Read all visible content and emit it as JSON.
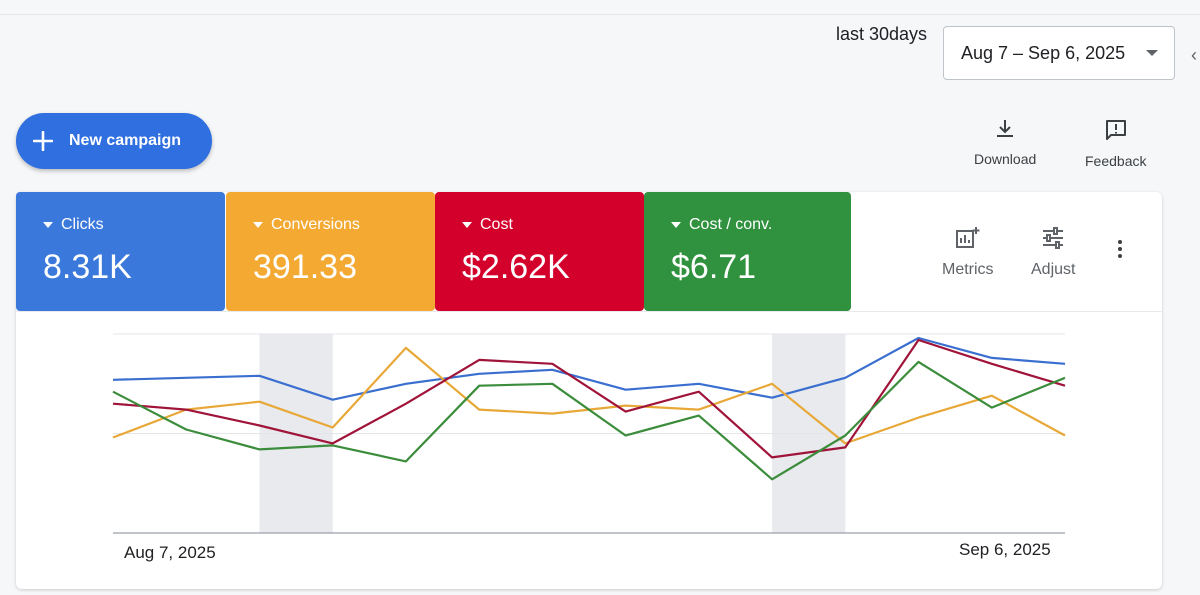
{
  "header": {
    "range_label": "last 30days",
    "date_range": "Aug 7 – Sep 6, 2025"
  },
  "actions": {
    "new_campaign": "New campaign",
    "download": "Download",
    "feedback": "Feedback"
  },
  "scorecards": [
    {
      "name": "Clicks",
      "value": "8.31K",
      "color": "#3a78db"
    },
    {
      "name": "Conversions",
      "value": "391.33",
      "color": "#f4a933"
    },
    {
      "name": "Cost",
      "value": "$2.62K",
      "color": "#d4002c"
    },
    {
      "name": "Cost / conv.",
      "value": "$6.71",
      "color": "#30923f"
    }
  ],
  "chart_tools": {
    "metrics": "Metrics",
    "adjust": "Adjust"
  },
  "chart_data": {
    "type": "line",
    "x_labels": [
      "Aug 7, 2025",
      "Sep 6, 2025"
    ],
    "x": [
      0,
      1,
      2,
      3,
      4,
      5,
      6,
      7,
      8,
      9,
      10,
      11,
      12,
      13
    ],
    "ylim": [
      0,
      100
    ],
    "grid": true,
    "shaded_ranges": [
      [
        2,
        3
      ],
      [
        9,
        10
      ]
    ],
    "series": [
      {
        "color": "#3a6fd0",
        "values": [
          77,
          78,
          79,
          67,
          75,
          80,
          82,
          72,
          75,
          68,
          78,
          98,
          88,
          85
        ]
      },
      {
        "color": "#e8a838",
        "values": [
          48,
          62,
          66,
          53,
          93,
          62,
          60,
          64,
          62,
          75,
          45,
          58,
          69,
          49
        ]
      },
      {
        "color": "#a0143a",
        "values": [
          65,
          62,
          54,
          45,
          65,
          87,
          85,
          61,
          71,
          38,
          43,
          97,
          85,
          74
        ]
      },
      {
        "color": "#3b8c3b",
        "values": [
          71,
          52,
          42,
          44,
          36,
          74,
          75,
          49,
          59,
          27,
          49,
          86,
          63,
          78
        ]
      }
    ]
  }
}
